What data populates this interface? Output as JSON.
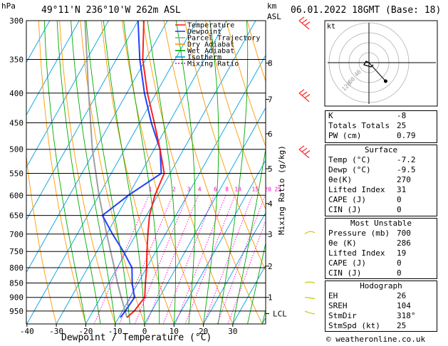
{
  "header": {
    "hpa_label": "hPa",
    "location": "49°11'N  236°10'W  262m  ASL",
    "km_label": "km",
    "asl_label": "ASL",
    "datetime": "06.01.2022  18GMT  (Base: 18)"
  },
  "footer": {
    "credit": "© weatheronline.co.uk"
  },
  "colors": {
    "temperature": "#ff2020",
    "dewpoint": "#2040ff",
    "parcel": "#a0a0a0",
    "dry_adiabat": "#ff9900",
    "wet_adiabat": "#00aa00",
    "isotherm": "#00a0e0",
    "mixing_ratio": "#ff00cc",
    "wind_barb": "#c8c800"
  },
  "legend": [
    {
      "label": "Temperature",
      "color": "#ff2020",
      "dash": ""
    },
    {
      "label": "Dewpoint",
      "color": "#2040ff",
      "dash": ""
    },
    {
      "label": "Parcel Trajectory",
      "color": "#a0a0a0",
      "dash": ""
    },
    {
      "label": "Dry Adiabat",
      "color": "#ff9900",
      "dash": ""
    },
    {
      "label": "Wet Adiabat",
      "color": "#00aa00",
      "dash": ""
    },
    {
      "label": "Isotherm",
      "color": "#00a0e0",
      "dash": ""
    },
    {
      "label": "Mixing Ratio",
      "color": "#ff00cc",
      "dash": "2,2"
    }
  ],
  "chart_data": {
    "type": "line",
    "xlabel": "Dewpoint / Temperature (°C)",
    "ylabel_right": "Mixing Ratio (g/kg)",
    "x_ticks": [
      -40,
      -30,
      -20,
      -10,
      0,
      10,
      20,
      30
    ],
    "xlim": [
      -40,
      40
    ],
    "pressure_levels": [
      300,
      350,
      400,
      450,
      500,
      550,
      600,
      650,
      700,
      750,
      800,
      850,
      900,
      950
    ],
    "pressure_range": [
      300,
      1000
    ],
    "y_scale": "log-pressure",
    "km_ticks": [
      {
        "km": "8",
        "p": 355
      },
      {
        "km": "7",
        "p": 410
      },
      {
        "km": "6",
        "p": 470
      },
      {
        "km": "5",
        "p": 540
      },
      {
        "km": "4",
        "p": 620
      },
      {
        "km": "3",
        "p": 700
      },
      {
        "km": "2",
        "p": 795
      },
      {
        "km": "1",
        "p": 900
      },
      {
        "km": "LCL",
        "p": 960
      }
    ],
    "mixing_ratio_labels": [
      1,
      2,
      3,
      4,
      6,
      8,
      10,
      15,
      20,
      25
    ],
    "mixing_ratio_label_p": 590,
    "series": [
      {
        "name": "Temperature",
        "points": [
          [
            975,
            -7.2
          ],
          [
            950,
            -6
          ],
          [
            900,
            -5
          ],
          [
            850,
            -7.5
          ],
          [
            800,
            -10
          ],
          [
            750,
            -13
          ],
          [
            700,
            -16
          ],
          [
            650,
            -19
          ],
          [
            600,
            -21
          ],
          [
            550,
            -22
          ],
          [
            500,
            -28
          ],
          [
            450,
            -35
          ],
          [
            400,
            -43
          ],
          [
            350,
            -51
          ],
          [
            300,
            -58
          ]
        ]
      },
      {
        "name": "Dewpoint",
        "points": [
          [
            975,
            -9.5
          ],
          [
            950,
            -9
          ],
          [
            900,
            -8.5
          ],
          [
            850,
            -12
          ],
          [
            800,
            -15
          ],
          [
            750,
            -21
          ],
          [
            700,
            -28
          ],
          [
            650,
            -35
          ],
          [
            600,
            -30
          ],
          [
            550,
            -23
          ],
          [
            500,
            -28
          ],
          [
            450,
            -36
          ],
          [
            400,
            -44
          ],
          [
            350,
            -52
          ],
          [
            300,
            -60
          ]
        ]
      },
      {
        "name": "Parcel Trajectory",
        "points": [
          [
            975,
            -7.2
          ],
          [
            960,
            -8.3
          ],
          [
            900,
            -13
          ],
          [
            850,
            -17
          ],
          [
            800,
            -21
          ],
          [
            700,
            -30
          ],
          [
            600,
            -40
          ],
          [
            500,
            -51
          ],
          [
            400,
            -63
          ],
          [
            300,
            -78
          ]
        ]
      }
    ]
  },
  "indices": [
    {
      "label": "K",
      "value": "-8"
    },
    {
      "label": "Totals Totals",
      "value": "25"
    },
    {
      "label": "PW (cm)",
      "value": "0.79"
    }
  ],
  "surface": {
    "title": "Surface",
    "rows": [
      {
        "label": "Temp (°C)",
        "value": "-7.2"
      },
      {
        "label": "Dewp (°C)",
        "value": "-9.5"
      },
      {
        "label": "θe(K)",
        "value": "270"
      },
      {
        "label": "Lifted Index",
        "value": "31"
      },
      {
        "label": "CAPE (J)",
        "value": "0"
      },
      {
        "label": "CIN (J)",
        "value": "0"
      }
    ]
  },
  "most_unstable": {
    "title": "Most Unstable",
    "rows": [
      {
        "label": "Pressure (mb)",
        "value": "700"
      },
      {
        "label": "θe (K)",
        "value": "286"
      },
      {
        "label": "Lifted Index",
        "value": "19"
      },
      {
        "label": "CAPE (J)",
        "value": "0"
      },
      {
        "label": "CIN (J)",
        "value": "0"
      }
    ]
  },
  "hodograph_stats": {
    "title": "Hodograph",
    "rows": [
      {
        "label": "EH",
        "value": "26"
      },
      {
        "label": "SREH",
        "value": "104"
      },
      {
        "label": "StmDir",
        "value": "318°"
      },
      {
        "label": "StmSpd (kt)",
        "value": "25"
      }
    ]
  },
  "hodograph": {
    "unit_label": "kt",
    "ring_labels": [
      "40",
      "60",
      "120"
    ],
    "storm_dir_deg": 318,
    "storm_speed_kt": 25
  }
}
